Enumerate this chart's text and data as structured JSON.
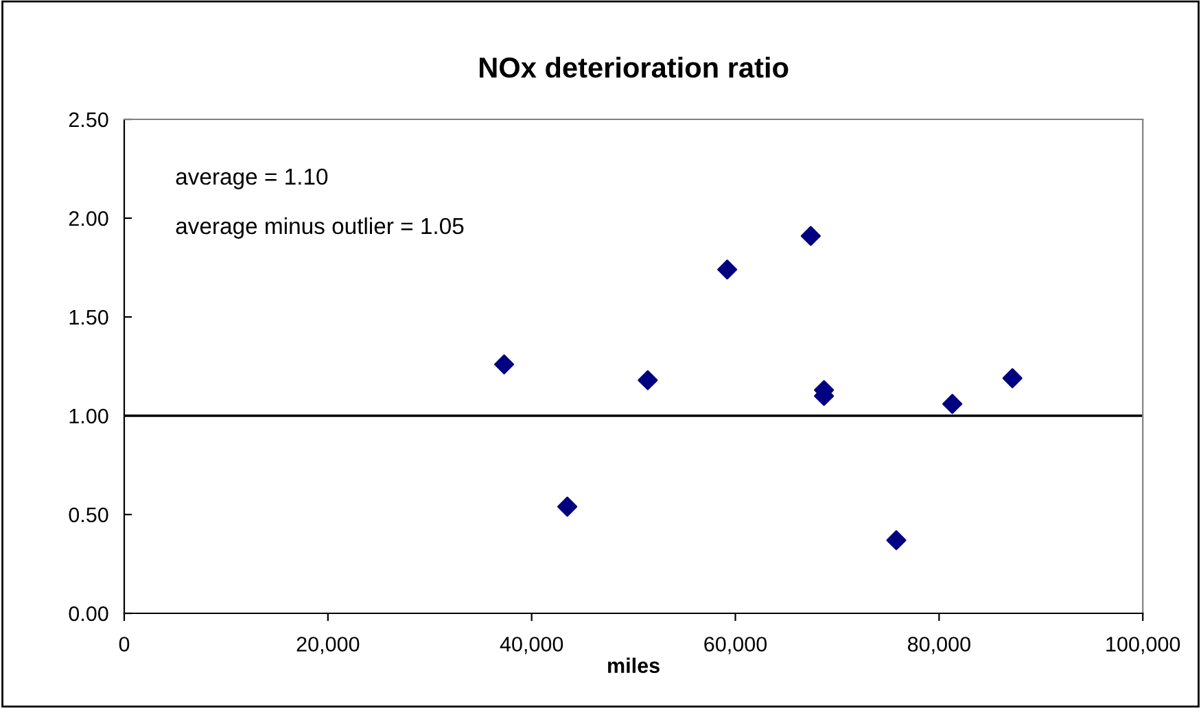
{
  "chart_data": {
    "type": "scatter",
    "title": "NOx deterioration ratio",
    "xlabel": "miles",
    "x": [
      37300,
      43500,
      51400,
      59200,
      67400,
      68700,
      68700,
      75800,
      81300,
      87200
    ],
    "series": [
      {
        "color": "#000080",
        "values": [
          1.26,
          0.54,
          1.18,
          1.74,
          1.91,
          1.13,
          1.1,
          0.37,
          1.06,
          1.19
        ]
      }
    ],
    "xlim": [
      0,
      100000
    ],
    "xticks": [
      {
        "value": 0,
        "label": "0"
      },
      {
        "value": 20000,
        "label": "20,000"
      },
      {
        "value": 40000,
        "label": "40,000"
      },
      {
        "value": 60000,
        "label": "60,000"
      },
      {
        "value": 80000,
        "label": "80,000"
      },
      {
        "value": 100000,
        "label": "100,000"
      }
    ],
    "ylim": [
      0,
      2.5
    ],
    "yticks": [
      {
        "value": 0,
        "label": "0.00"
      },
      {
        "value": 0.5,
        "label": "0.50"
      },
      {
        "value": 1,
        "label": "1.00"
      },
      {
        "value": 1.5,
        "label": "1.50"
      },
      {
        "value": 2,
        "label": "2.00"
      },
      {
        "value": 2.5,
        "label": "2.50"
      }
    ],
    "ref_lines": [
      {
        "axis": "y",
        "value": 1,
        "color": "#000000"
      }
    ],
    "annotations": [
      "average = 1.10",
      "average minus outlier = 1.05"
    ],
    "marker": "diamond",
    "grid": false
  }
}
